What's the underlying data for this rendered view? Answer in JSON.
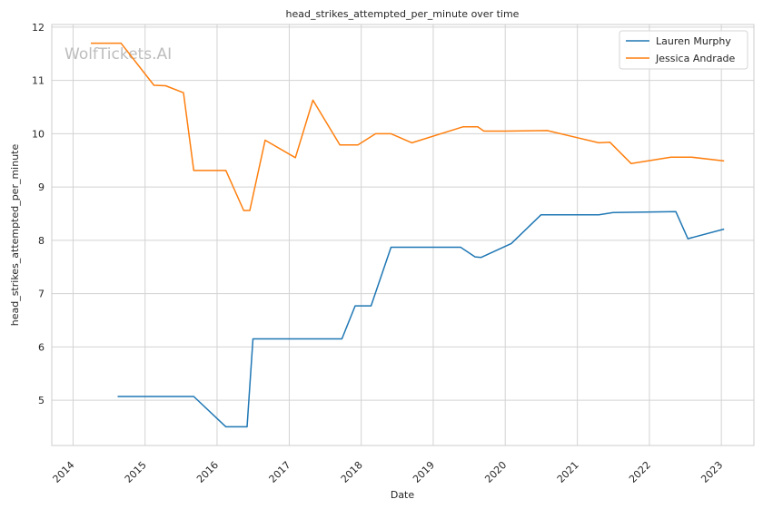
{
  "chart_data": {
    "type": "line",
    "title": "head_strikes_attempted_per_minute over time",
    "xlabel": "Date",
    "ylabel": "head_strikes_attempted_per_minute",
    "watermark": "WolfTickets.AI",
    "xlim": [
      "2013-09-15",
      "2023-06-15"
    ],
    "ylim": [
      4.15,
      12.05
    ],
    "x_ticks": [
      "2014-01-01",
      "2015-01-01",
      "2016-01-01",
      "2017-01-01",
      "2018-01-01",
      "2019-01-01",
      "2020-01-01",
      "2021-01-01",
      "2022-01-01",
      "2023-01-01"
    ],
    "x_tick_labels": [
      "2014",
      "2015",
      "2016",
      "2017",
      "2018",
      "2019",
      "2020",
      "2021",
      "2022",
      "2023"
    ],
    "y_ticks": [
      5,
      6,
      7,
      8,
      9,
      10,
      11,
      12
    ],
    "grid": true,
    "legend_position": "top-right",
    "colors": {
      "Lauren Murphy": "#1f77b4",
      "Jessica Andrade": "#ff7f0e"
    },
    "series": [
      {
        "name": "Lauren Murphy",
        "x": [
          "2014-08-15",
          "2015-09-05",
          "2016-02-15",
          "2016-06-01",
          "2016-07-01",
          "2017-09-25",
          "2017-12-01",
          "2018-02-20",
          "2018-06-01",
          "2019-05-20",
          "2019-08-01",
          "2019-09-01",
          "2020-02-01",
          "2020-07-01",
          "2021-04-20",
          "2021-07-01",
          "2022-05-15",
          "2022-07-15",
          "2023-01-15"
        ],
        "values": [
          5.07,
          5.07,
          4.5,
          4.5,
          6.15,
          6.15,
          6.77,
          6.77,
          7.87,
          7.87,
          7.69,
          7.68,
          7.94,
          8.48,
          8.48,
          8.52,
          8.54,
          8.03,
          8.21
        ]
      },
      {
        "name": "Jessica Andrade",
        "x": [
          "2014-04-01",
          "2014-09-01",
          "2015-02-15",
          "2015-04-15",
          "2015-07-15",
          "2015-09-05",
          "2016-02-15",
          "2016-05-15",
          "2016-06-15",
          "2016-09-01",
          "2017-02-01",
          "2017-05-01",
          "2017-09-15",
          "2017-12-15",
          "2018-03-15",
          "2018-06-01",
          "2018-09-15",
          "2019-06-01",
          "2019-08-15",
          "2019-09-15",
          "2020-01-01",
          "2020-08-01",
          "2021-04-20",
          "2021-06-15",
          "2021-10-01",
          "2022-04-20",
          "2022-08-01",
          "2023-01-15"
        ],
        "values": [
          11.7,
          11.7,
          10.91,
          10.9,
          10.77,
          9.31,
          9.31,
          8.56,
          8.56,
          9.88,
          9.55,
          10.63,
          9.79,
          9.79,
          10.0,
          10.0,
          9.83,
          10.13,
          10.13,
          10.05,
          10.05,
          10.06,
          9.83,
          9.84,
          9.44,
          9.56,
          9.56,
          9.49
        ]
      }
    ]
  }
}
